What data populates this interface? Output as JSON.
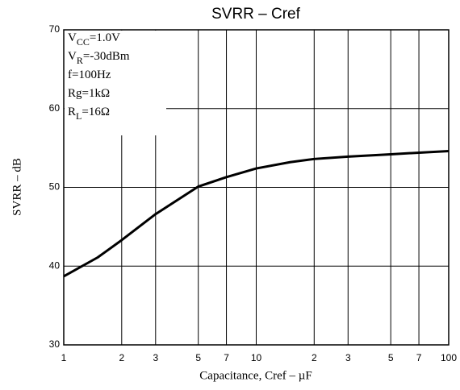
{
  "chart_data": {
    "type": "line",
    "title": "SVRR – Cref",
    "xlabel": "Capacitance, Cref – µF",
    "ylabel": "SVRR – dB",
    "xscale": "log",
    "x": [
      1,
      1.5,
      2,
      3,
      5,
      7,
      10,
      15,
      20,
      30,
      50,
      70,
      100
    ],
    "series": [
      {
        "name": null,
        "color": "#000000",
        "values": [
          38.7,
          41.1,
          43.3,
          46.6,
          50.1,
          51.3,
          52.4,
          53.2,
          53.6,
          53.9,
          54.2,
          54.4,
          54.6
        ]
      }
    ],
    "xlim": [
      1,
      100
    ],
    "xticks": [
      1,
      2,
      3,
      5,
      7,
      10,
      {
        "value": 20,
        "label": "2"
      },
      {
        "value": 30,
        "label": "3"
      },
      {
        "value": 50,
        "label": "5"
      },
      {
        "value": 70,
        "label": "7"
      },
      100
    ],
    "ylim": [
      30,
      70
    ],
    "yticks": [
      30,
      40,
      50,
      60,
      70
    ],
    "grid": true,
    "annotations": [
      {
        "text": "V",
        "sub": "CC",
        "rest": "=1.0V"
      },
      {
        "text": "V",
        "sub": "R",
        "rest": "=-30dBm"
      },
      {
        "text": "f=100Hz"
      },
      {
        "text": "Rg=1kΩ"
      },
      {
        "text": "R",
        "sub": "L",
        "rest": "=16Ω"
      }
    ]
  }
}
